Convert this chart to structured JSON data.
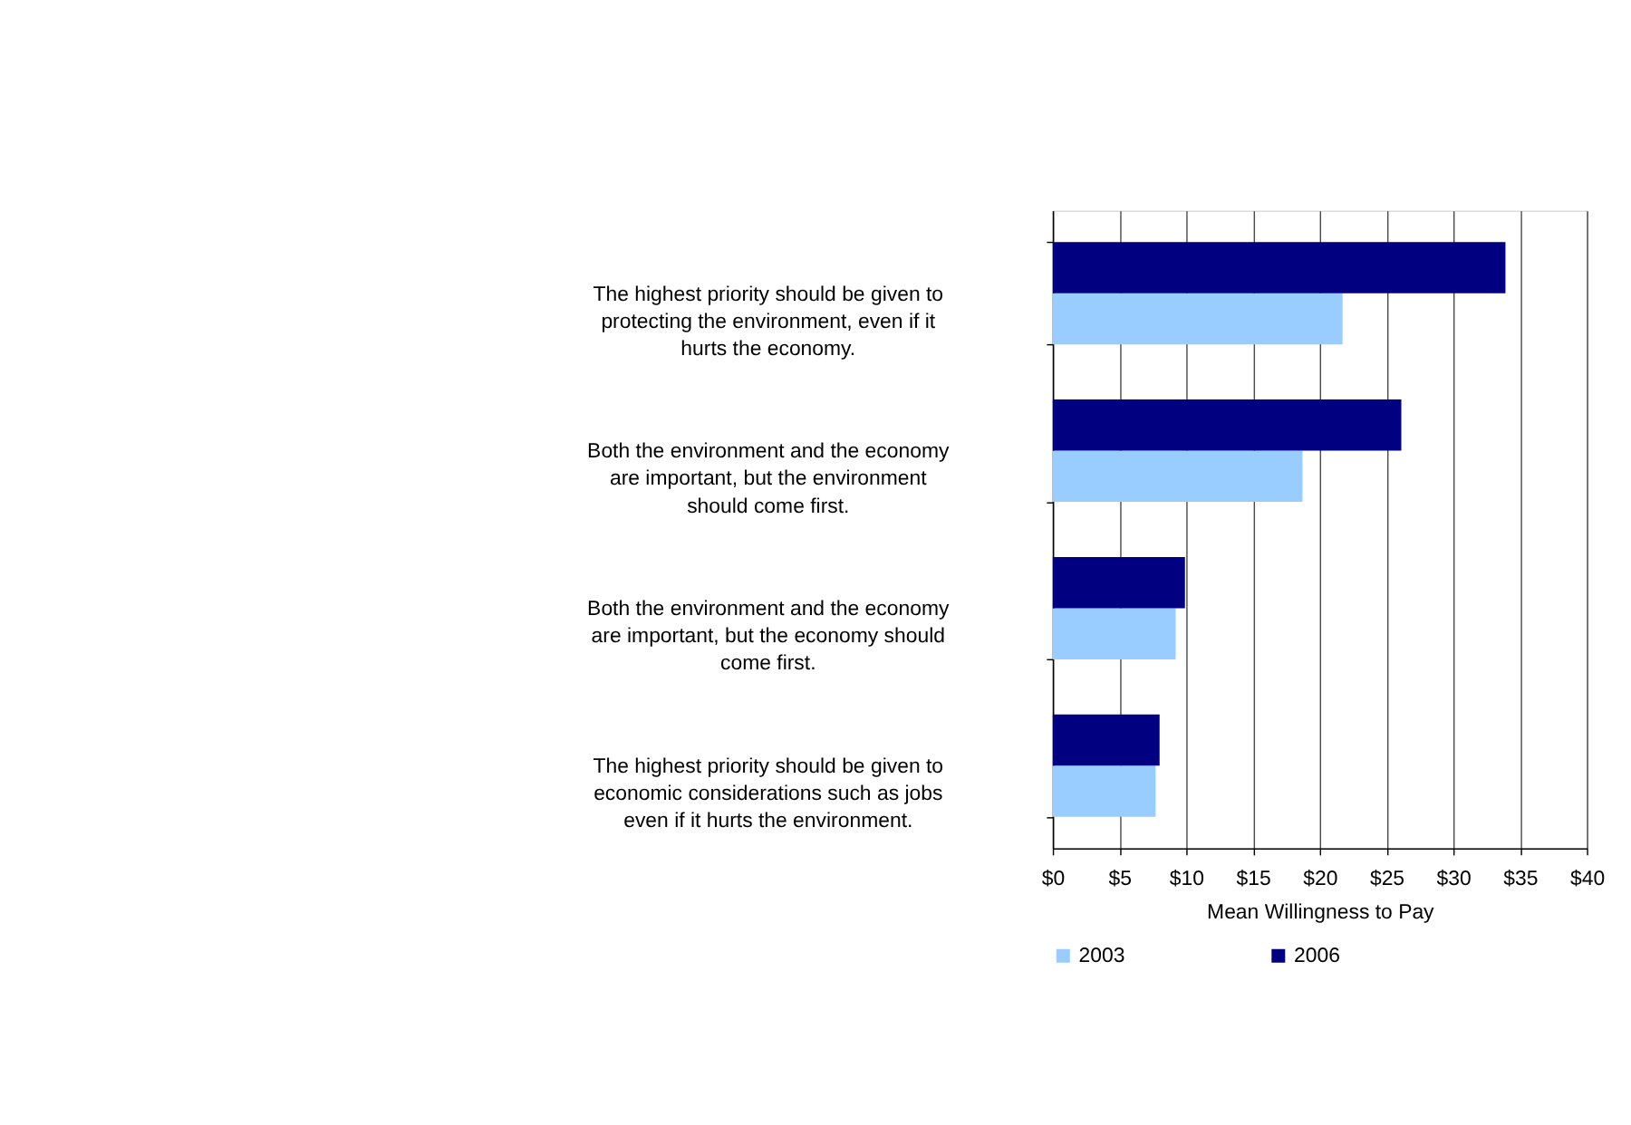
{
  "chart_data": {
    "type": "bar",
    "orientation": "horizontal",
    "categories": [
      "The highest priority should be given to protecting the environment, even if it hurts the economy.",
      "Both the environment and the economy are important, but the environment should come first.",
      "Both the environment and the economy are important, but the economy should come first.",
      "The highest priority should be given to economic considerations such as jobs even if it hurts the environment."
    ],
    "series": [
      {
        "name": "2003",
        "color": "#99ccff",
        "values": [
          21.7,
          18.7,
          9.2,
          7.7
        ]
      },
      {
        "name": "2006",
        "color": "#000080",
        "values": [
          33.9,
          26.1,
          9.9,
          8.0
        ]
      }
    ],
    "xlabel": "Mean Willingness to Pay",
    "xlim": [
      0,
      40
    ],
    "xticks": [
      {
        "value": 0,
        "label": "$0"
      },
      {
        "value": 5,
        "label": "$5"
      },
      {
        "value": 10,
        "label": "$10"
      },
      {
        "value": 15,
        "label": "$15"
      },
      {
        "value": 20,
        "label": "$20"
      },
      {
        "value": 25,
        "label": "$25"
      },
      {
        "value": 30,
        "label": "$30"
      },
      {
        "value": 35,
        "label": "$35"
      },
      {
        "value": 40,
        "label": "$40"
      }
    ],
    "grid": "x",
    "legend": "bottom"
  }
}
